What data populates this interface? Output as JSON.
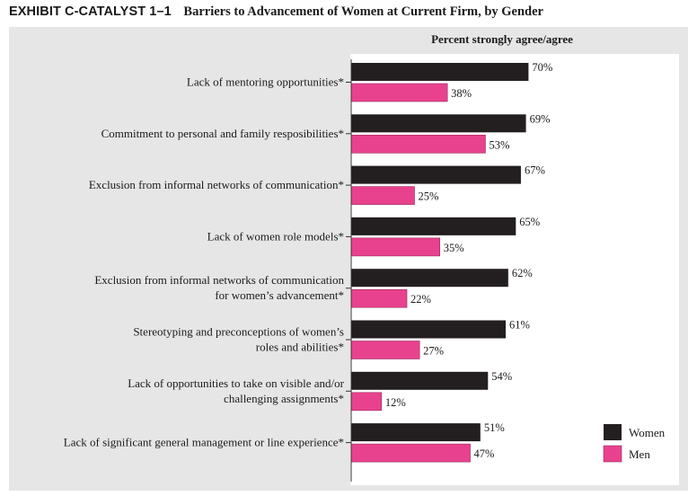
{
  "exhibit": {
    "label": "EXHIBIT C-CATALYST 1–1",
    "title": "Barriers to Advancement of Women at Current Firm, by Gender"
  },
  "chart_data": {
    "type": "bar",
    "orientation": "horizontal",
    "title": "Barriers to Advancement of Women at Current Firm, by Gender",
    "column_header": "Percent strongly agree/agree",
    "unit": "%",
    "categories": [
      [
        "Lack of mentoring opportunities*"
      ],
      [
        "Commitment to personal and family resposibilities*"
      ],
      [
        "Exclusion from informal networks of communication*"
      ],
      [
        "Lack of women role models*"
      ],
      [
        "Exclusion from informal networks of communication",
        "for women’s advancement*"
      ],
      [
        "Stereotyping and preconceptions of women’s",
        "roles and abilities*"
      ],
      [
        "Lack of opportunities to take on visible and/or",
        "challenging assignments*"
      ],
      [
        "Lack of significant general management or line experience*"
      ]
    ],
    "series": [
      {
        "name": "Women",
        "color": "#231f20",
        "values": [
          70,
          69,
          67,
          65,
          62,
          61,
          54,
          51
        ]
      },
      {
        "name": "Men",
        "color": "#e8428e",
        "values": [
          38,
          53,
          25,
          35,
          22,
          27,
          12,
          47
        ]
      }
    ],
    "xlim": [
      0,
      100
    ],
    "legend_position": "bottom-right",
    "grid": false
  }
}
